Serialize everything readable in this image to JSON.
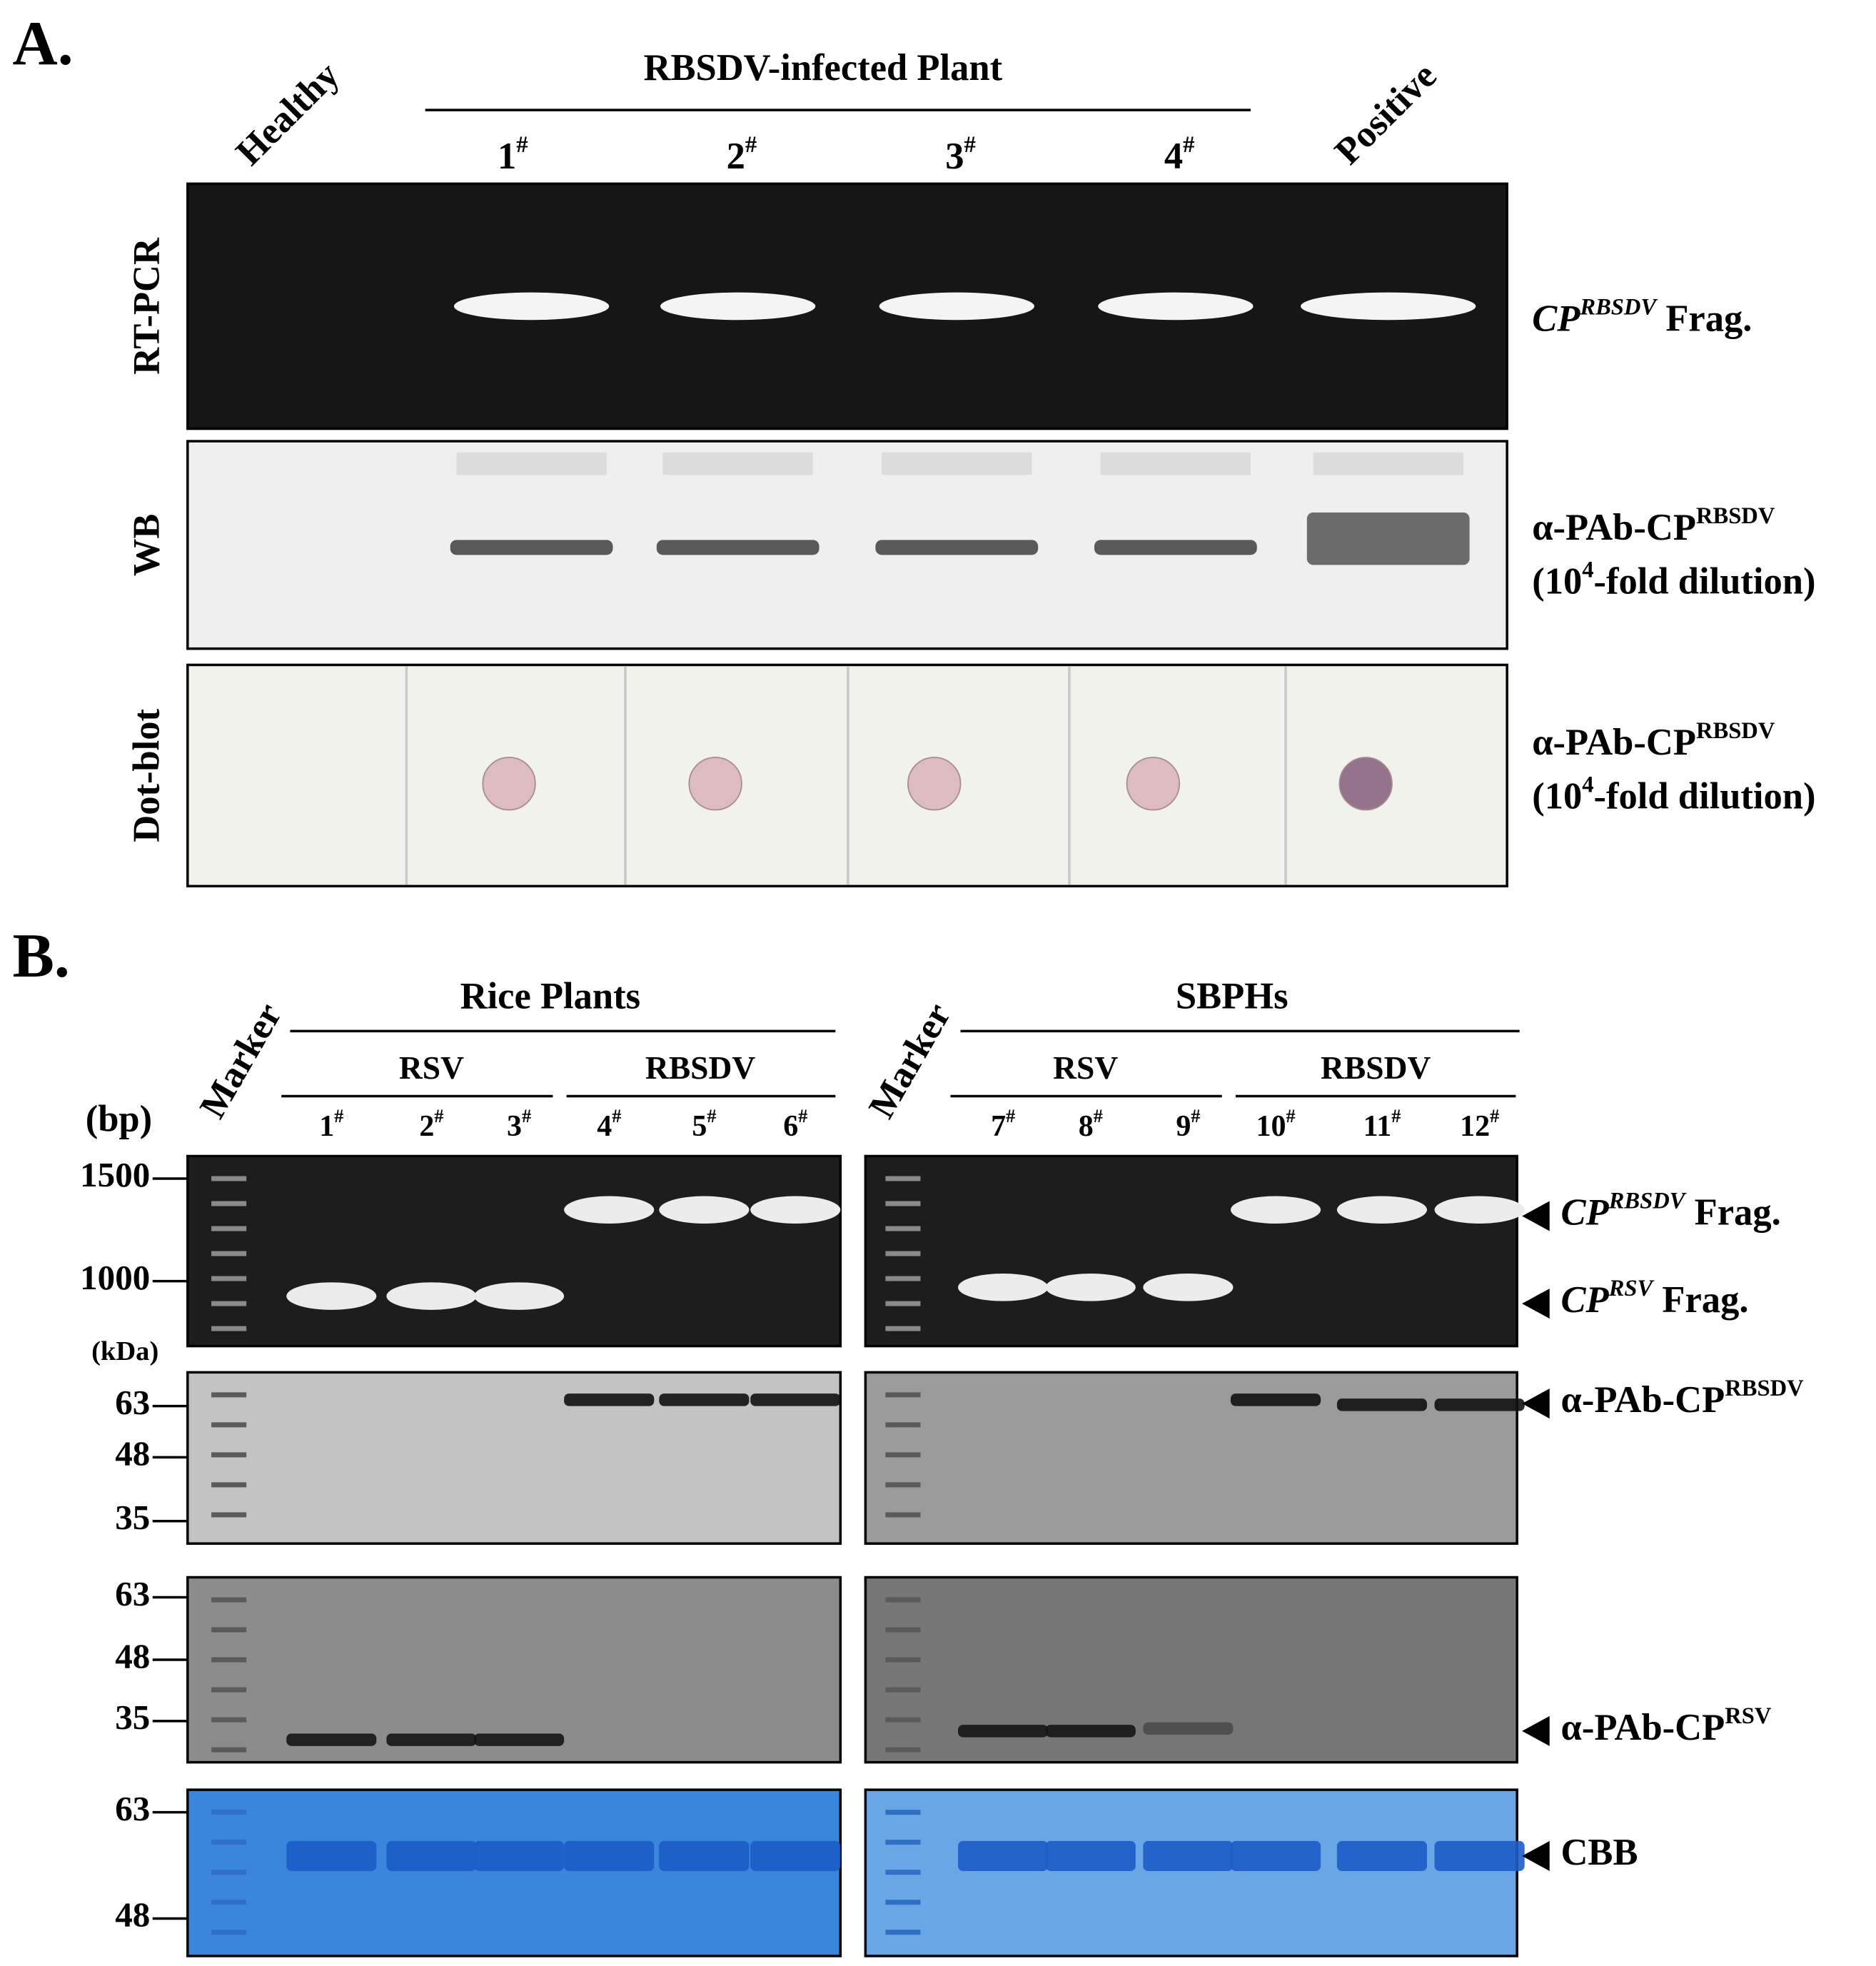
{
  "panel_a": {
    "label": "A.",
    "group_header": "RBSDV-infected Plant",
    "lane_labels": [
      [
        {
          "t": "Healthy"
        }
      ],
      [
        {
          "t": "1"
        },
        {
          "t": "#",
          "sup": true
        }
      ],
      [
        {
          "t": "2"
        },
        {
          "t": "#",
          "sup": true
        }
      ],
      [
        {
          "t": "3"
        },
        {
          "t": "#",
          "sup": true
        }
      ],
      [
        {
          "t": "4"
        },
        {
          "t": "#",
          "sup": true
        }
      ],
      [
        {
          "t": "Positive"
        }
      ]
    ],
    "rows": [
      {
        "label": "RT-PCR",
        "annotation": [
          [
            {
              "t": "CP",
              "italic": true
            },
            {
              "t": "RBSDV",
              "italic": true,
              "sup": true
            },
            {
              "t": " Frag."
            }
          ]
        ]
      },
      {
        "label": "WB",
        "annotation": [
          [
            {
              "t": "α-PAb-CP"
            },
            {
              "t": "RBSDV",
              "sup": true
            }
          ],
          [
            {
              "t": "(10"
            },
            {
              "t": "4",
              "sup": true
            },
            {
              "t": "-fold dilution)"
            }
          ]
        ]
      },
      {
        "label": "Dot-blot",
        "annotation": [
          [
            {
              "t": "α-PAb-CP"
            },
            {
              "t": "RBSDV",
              "sup": true
            }
          ],
          [
            {
              "t": "(10"
            },
            {
              "t": "4",
              "sup": true
            },
            {
              "t": "-fold dilution)"
            }
          ]
        ]
      }
    ]
  },
  "panel_b": {
    "label": "B.",
    "groups": [
      {
        "title": "Rice Plants",
        "marker_label": "Marker",
        "subgroups": [
          {
            "title": "RSV",
            "lanes": [
              [
                {
                  "t": "1"
                },
                {
                  "t": "#",
                  "sup": true
                }
              ],
              [
                {
                  "t": "2"
                },
                {
                  "t": "#",
                  "sup": true
                }
              ],
              [
                {
                  "t": "3"
                },
                {
                  "t": "#",
                  "sup": true
                }
              ]
            ]
          },
          {
            "title": "RBSDV",
            "lanes": [
              [
                {
                  "t": "4"
                },
                {
                  "t": "#",
                  "sup": true
                }
              ],
              [
                {
                  "t": "5"
                },
                {
                  "t": "#",
                  "sup": true
                }
              ],
              [
                {
                  "t": "6"
                },
                {
                  "t": "#",
                  "sup": true
                }
              ]
            ]
          }
        ]
      },
      {
        "title": "SBPHs",
        "marker_label": "Marker",
        "subgroups": [
          {
            "title": "RSV",
            "lanes": [
              [
                {
                  "t": "7"
                },
                {
                  "t": "#",
                  "sup": true
                }
              ],
              [
                {
                  "t": "8"
                },
                {
                  "t": "#",
                  "sup": true
                }
              ],
              [
                {
                  "t": "9"
                },
                {
                  "t": "#",
                  "sup": true
                }
              ]
            ]
          },
          {
            "title": "RBSDV",
            "lanes": [
              [
                {
                  "t": "10"
                },
                {
                  "t": "#",
                  "sup": true
                }
              ],
              [
                {
                  "t": "11"
                },
                {
                  "t": "#",
                  "sup": true
                }
              ],
              [
                {
                  "t": "12"
                },
                {
                  "t": "#",
                  "sup": true
                }
              ]
            ]
          }
        ]
      }
    ],
    "size_units": [
      "(bp)",
      "(kDa)"
    ],
    "gel_ticks": [
      [
        1500,
        1000
      ],
      [
        63,
        48,
        35
      ],
      [
        63,
        48,
        35
      ],
      [
        63,
        48
      ]
    ],
    "annotations": [
      [
        {
          "t": "CP",
          "italic": true
        },
        {
          "t": "RBSDV",
          "italic": true,
          "sup": true
        },
        {
          "t": " Frag."
        }
      ],
      [
        {
          "t": "CP",
          "italic": true
        },
        {
          "t": "RSV",
          "italic": true,
          "sup": true
        },
        {
          "t": " Frag."
        }
      ],
      [
        {
          "t": "α-PAb-CP"
        },
        {
          "t": "RBSDV",
          "sup": true
        }
      ],
      [
        {
          "t": "α-PAb-CP"
        },
        {
          "t": "RSV",
          "sup": true
        }
      ],
      [
        {
          "t": "CBB"
        }
      ]
    ]
  }
}
